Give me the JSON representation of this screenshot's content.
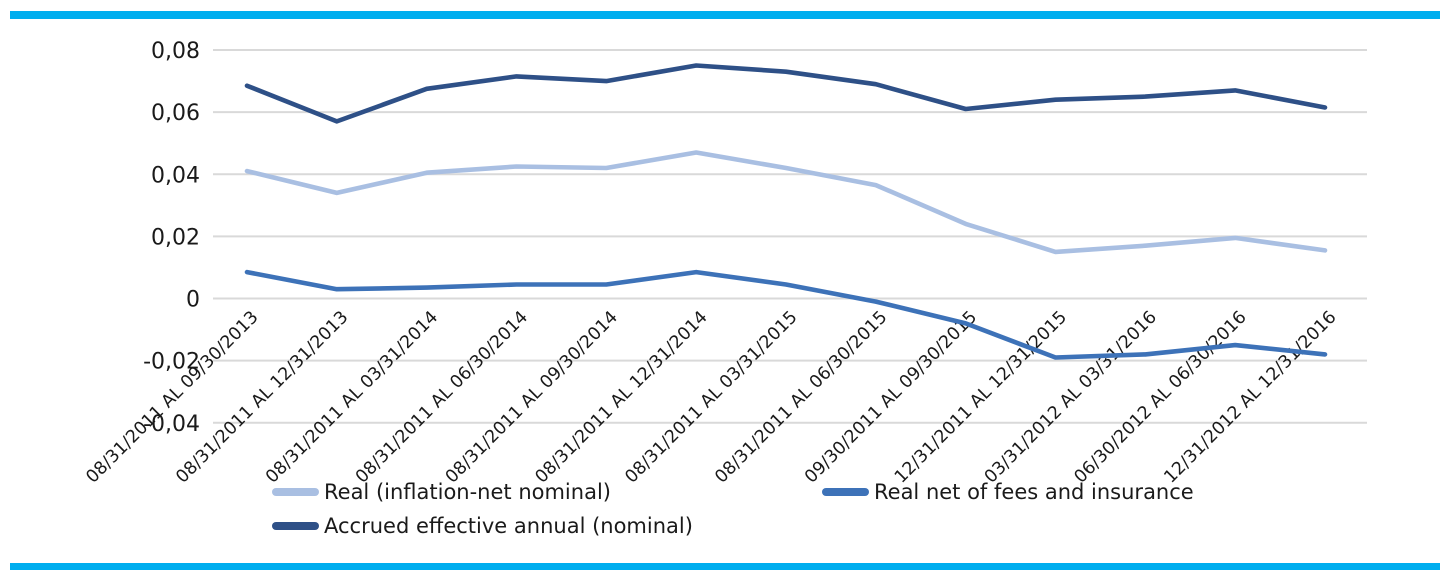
{
  "page": {
    "background": "#ffffff",
    "accent_bar_color": "#00AEEF"
  },
  "chart_data": {
    "type": "line",
    "title": "",
    "xlabel": "",
    "ylabel": "",
    "grid": true,
    "legend_position": "bottom",
    "ylim": [
      -0.04,
      0.08
    ],
    "yticks": [
      0.08,
      0.06,
      0.04,
      0.02,
      0,
      -0.02,
      -0.04
    ],
    "ytick_labels": [
      "0,08",
      "0,06",
      "0,04",
      "0,02",
      "0",
      "-0,02",
      "-0,04"
    ],
    "gridline_color": "#D9D9D9",
    "axis_text_color": "#1a1a1a",
    "categories": [
      "08/31/2011 AL 09/30/2013",
      "08/31/2011 AL 12/31/2013",
      "08/31/2011 AL 03/31/2014",
      "08/31/2011 AL 06/30/2014",
      "08/31/2011 AL 09/30/2014",
      "08/31/2011 AL 12/31/2014",
      "08/31/2011 AL 03/31/2015",
      "08/31/2011 AL 06/30/2015",
      "09/30/2011 AL 09/30/2015",
      "12/31/2011 AL 12/31/2015",
      "03/31/2012 AL 03/31/2016",
      "06/30/2012 AL 06/30/2016",
      "12/31/2012 AL 12/31/2016"
    ],
    "series": [
      {
        "name": "Real (inflation-net nominal)",
        "color": "#A9BFE2",
        "values": [
          0.041,
          0.034,
          0.0405,
          0.0425,
          0.042,
          0.047,
          0.042,
          0.0365,
          0.024,
          0.015,
          0.017,
          0.0195,
          0.0155
        ]
      },
      {
        "name": "Real net of fees and insurance",
        "color": "#3D72B8",
        "values": [
          0.0085,
          0.003,
          0.0035,
          0.0045,
          0.0045,
          0.0085,
          0.0045,
          -0.001,
          -0.008,
          -0.019,
          -0.018,
          -0.015,
          -0.018
        ]
      },
      {
        "name": "Accrued effective annual (nominal)",
        "color": "#2E5087",
        "values": [
          0.0685,
          0.057,
          0.0675,
          0.0715,
          0.07,
          0.075,
          0.073,
          0.069,
          0.061,
          0.064,
          0.065,
          0.067,
          0.0615
        ]
      }
    ]
  }
}
